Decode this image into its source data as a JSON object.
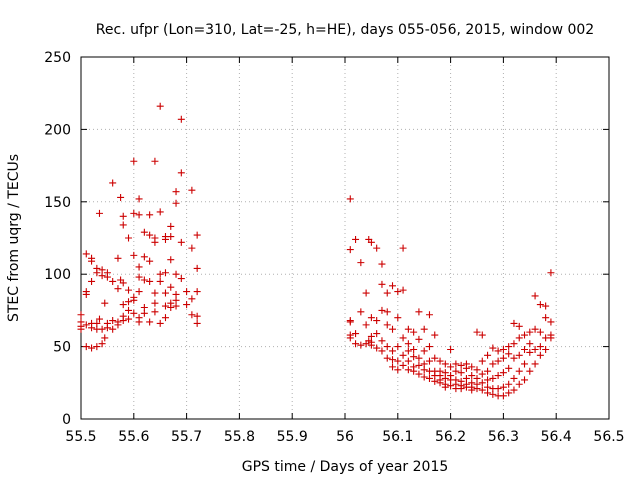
{
  "chart_data": {
    "type": "scatter",
    "title": "Rec. ufpr (Lon=310, Lat=-25, h=HE), days 055-056, 2015, window 002",
    "xlabel": "GPS time / Days of year 2015",
    "ylabel": "STEC from uqrg / TECUs",
    "xlim": [
      55.5,
      56.5
    ],
    "ylim": [
      0,
      250
    ],
    "x_ticks": [
      55.5,
      55.6,
      55.7,
      55.8,
      55.9,
      56,
      56.1,
      56.2,
      56.3,
      56.4,
      56.5
    ],
    "x_tick_labels": [
      "55.5",
      "55.6",
      "55.7",
      "55.8",
      "55.9",
      "56",
      "56.1",
      "56.2",
      "56.3",
      "56.4",
      "56.5"
    ],
    "y_ticks": [
      0,
      50,
      100,
      150,
      200,
      250
    ],
    "y_tick_labels": [
      "0",
      "50",
      "100",
      "150",
      "200",
      "250"
    ],
    "marker": "+",
    "color": "#cc0000",
    "series": [
      {
        "name": "STEC",
        "points": [
          [
            55.5,
            72
          ],
          [
            55.5,
            67
          ],
          [
            55.5,
            64
          ],
          [
            55.5,
            62
          ],
          [
            55.51,
            114
          ],
          [
            55.51,
            88
          ],
          [
            55.51,
            86
          ],
          [
            55.51,
            65
          ],
          [
            55.51,
            50
          ],
          [
            55.52,
            111
          ],
          [
            55.52,
            109
          ],
          [
            55.52,
            95
          ],
          [
            55.52,
            66
          ],
          [
            55.52,
            63
          ],
          [
            55.52,
            49
          ],
          [
            55.53,
            104
          ],
          [
            55.53,
            101
          ],
          [
            55.53,
            66
          ],
          [
            55.53,
            62
          ],
          [
            55.53,
            50
          ],
          [
            55.535,
            142
          ],
          [
            55.535,
            69
          ],
          [
            55.54,
            103
          ],
          [
            55.54,
            99
          ],
          [
            55.54,
            62
          ],
          [
            55.54,
            52
          ],
          [
            55.545,
            80
          ],
          [
            55.545,
            56
          ],
          [
            55.55,
            101
          ],
          [
            55.55,
            98
          ],
          [
            55.55,
            66
          ],
          [
            55.55,
            63
          ],
          [
            55.56,
            163
          ],
          [
            55.56,
            95
          ],
          [
            55.56,
            68
          ],
          [
            55.56,
            62
          ],
          [
            55.57,
            111
          ],
          [
            55.57,
            90
          ],
          [
            55.57,
            67
          ],
          [
            55.57,
            65
          ],
          [
            55.575,
            153
          ],
          [
            55.575,
            96
          ],
          [
            55.58,
            140
          ],
          [
            55.58,
            134
          ],
          [
            55.58,
            94
          ],
          [
            55.58,
            79
          ],
          [
            55.58,
            71
          ],
          [
            55.58,
            68
          ],
          [
            55.59,
            125
          ],
          [
            55.59,
            89
          ],
          [
            55.59,
            81
          ],
          [
            55.59,
            75
          ],
          [
            55.59,
            69
          ],
          [
            55.6,
            178
          ],
          [
            55.6,
            142
          ],
          [
            55.6,
            113
          ],
          [
            55.6,
            84
          ],
          [
            55.6,
            82
          ],
          [
            55.6,
            73
          ],
          [
            55.61,
            152
          ],
          [
            55.61,
            141
          ],
          [
            55.61,
            105
          ],
          [
            55.61,
            98
          ],
          [
            55.61,
            88
          ],
          [
            55.61,
            70
          ],
          [
            55.61,
            67
          ],
          [
            55.62,
            129
          ],
          [
            55.62,
            112
          ],
          [
            55.62,
            96
          ],
          [
            55.62,
            77
          ],
          [
            55.62,
            73
          ],
          [
            55.63,
            141
          ],
          [
            55.63,
            127
          ],
          [
            55.63,
            109
          ],
          [
            55.63,
            95
          ],
          [
            55.63,
            67
          ],
          [
            55.64,
            178
          ],
          [
            55.64,
            125
          ],
          [
            55.64,
            122
          ],
          [
            55.64,
            87
          ],
          [
            55.64,
            80
          ],
          [
            55.64,
            74
          ],
          [
            55.65,
            216
          ],
          [
            55.65,
            143
          ],
          [
            55.65,
            100
          ],
          [
            55.65,
            95
          ],
          [
            55.65,
            66
          ],
          [
            55.66,
            126
          ],
          [
            55.66,
            124
          ],
          [
            55.66,
            101
          ],
          [
            55.66,
            87
          ],
          [
            55.66,
            78
          ],
          [
            55.66,
            70
          ],
          [
            55.67,
            133
          ],
          [
            55.67,
            126
          ],
          [
            55.67,
            110
          ],
          [
            55.67,
            91
          ],
          [
            55.67,
            80
          ],
          [
            55.67,
            77
          ],
          [
            55.68,
            157
          ],
          [
            55.68,
            149
          ],
          [
            55.68,
            100
          ],
          [
            55.68,
            86
          ],
          [
            55.68,
            82
          ],
          [
            55.68,
            78
          ],
          [
            55.69,
            207
          ],
          [
            55.69,
            170
          ],
          [
            55.69,
            122
          ],
          [
            55.69,
            97
          ],
          [
            55.7,
            88
          ],
          [
            55.7,
            79
          ],
          [
            55.71,
            158
          ],
          [
            55.71,
            118
          ],
          [
            55.71,
            83
          ],
          [
            55.71,
            72
          ],
          [
            55.72,
            127
          ],
          [
            55.72,
            104
          ],
          [
            55.72,
            88
          ],
          [
            55.72,
            71
          ],
          [
            55.72,
            66
          ],
          [
            56.01,
            152
          ],
          [
            56.01,
            117
          ],
          [
            56.01,
            68
          ],
          [
            56.01,
            67
          ],
          [
            56.01,
            58
          ],
          [
            56.01,
            56
          ],
          [
            56.02,
            124
          ],
          [
            56.02,
            59
          ],
          [
            56.02,
            52
          ],
          [
            56.03,
            108
          ],
          [
            56.03,
            74
          ],
          [
            56.03,
            51
          ],
          [
            56.04,
            87
          ],
          [
            56.04,
            65
          ],
          [
            56.04,
            52
          ],
          [
            56.045,
            124
          ],
          [
            56.045,
            54
          ],
          [
            56.05,
            122
          ],
          [
            56.05,
            70
          ],
          [
            56.05,
            57
          ],
          [
            56.05,
            53
          ],
          [
            56.05,
            51
          ],
          [
            56.06,
            118
          ],
          [
            56.06,
            68
          ],
          [
            56.06,
            59
          ],
          [
            56.06,
            49
          ],
          [
            56.07,
            107
          ],
          [
            56.07,
            93
          ],
          [
            56.07,
            75
          ],
          [
            56.07,
            54
          ],
          [
            56.07,
            47
          ],
          [
            56.08,
            87
          ],
          [
            56.08,
            74
          ],
          [
            56.08,
            65
          ],
          [
            56.08,
            50
          ],
          [
            56.08,
            42
          ],
          [
            56.09,
            92
          ],
          [
            56.09,
            62
          ],
          [
            56.09,
            47
          ],
          [
            56.09,
            41
          ],
          [
            56.09,
            36
          ],
          [
            56.1,
            88
          ],
          [
            56.1,
            70
          ],
          [
            56.1,
            50
          ],
          [
            56.1,
            40
          ],
          [
            56.1,
            34
          ],
          [
            56.11,
            118
          ],
          [
            56.11,
            89
          ],
          [
            56.11,
            56
          ],
          [
            56.11,
            44
          ],
          [
            56.11,
            37
          ],
          [
            56.12,
            62
          ],
          [
            56.12,
            52
          ],
          [
            56.12,
            47
          ],
          [
            56.12,
            40
          ],
          [
            56.12,
            34
          ],
          [
            56.13,
            60
          ],
          [
            56.13,
            48
          ],
          [
            56.13,
            43
          ],
          [
            56.13,
            36
          ],
          [
            56.13,
            33
          ],
          [
            56.14,
            74
          ],
          [
            56.14,
            55
          ],
          [
            56.14,
            42
          ],
          [
            56.14,
            37
          ],
          [
            56.14,
            31
          ],
          [
            56.15,
            62
          ],
          [
            56.15,
            47
          ],
          [
            56.15,
            38
          ],
          [
            56.15,
            34
          ],
          [
            56.15,
            29
          ],
          [
            56.16,
            72
          ],
          [
            56.16,
            50
          ],
          [
            56.16,
            40
          ],
          [
            56.16,
            33
          ],
          [
            56.16,
            28
          ],
          [
            56.17,
            58
          ],
          [
            56.17,
            42
          ],
          [
            56.17,
            33
          ],
          [
            56.17,
            30
          ],
          [
            56.17,
            26
          ],
          [
            56.18,
            40
          ],
          [
            56.18,
            33
          ],
          [
            56.18,
            30
          ],
          [
            56.18,
            27
          ],
          [
            56.18,
            25
          ],
          [
            56.19,
            38
          ],
          [
            56.19,
            32
          ],
          [
            56.19,
            28
          ],
          [
            56.19,
            24
          ],
          [
            56.19,
            22
          ],
          [
            56.2,
            48
          ],
          [
            56.2,
            36
          ],
          [
            56.2,
            30
          ],
          [
            56.2,
            27
          ],
          [
            56.2,
            23
          ],
          [
            56.21,
            38
          ],
          [
            56.21,
            33
          ],
          [
            56.21,
            27
          ],
          [
            56.21,
            24
          ],
          [
            56.21,
            21
          ],
          [
            56.22,
            37
          ],
          [
            56.22,
            32
          ],
          [
            56.22,
            26
          ],
          [
            56.22,
            23
          ],
          [
            56.22,
            21
          ],
          [
            56.23,
            38
          ],
          [
            56.23,
            35
          ],
          [
            56.23,
            28
          ],
          [
            56.23,
            24
          ],
          [
            56.23,
            22
          ],
          [
            56.24,
            36
          ],
          [
            56.24,
            30
          ],
          [
            56.24,
            25
          ],
          [
            56.24,
            22
          ],
          [
            56.24,
            20
          ],
          [
            56.25,
            60
          ],
          [
            56.25,
            34
          ],
          [
            56.25,
            28
          ],
          [
            56.25,
            24
          ],
          [
            56.25,
            21
          ],
          [
            56.26,
            58
          ],
          [
            56.26,
            40
          ],
          [
            56.26,
            31
          ],
          [
            56.26,
            25
          ],
          [
            56.26,
            20
          ],
          [
            56.27,
            44
          ],
          [
            56.27,
            33
          ],
          [
            56.27,
            27
          ],
          [
            56.27,
            22
          ],
          [
            56.27,
            18
          ],
          [
            56.28,
            49
          ],
          [
            56.28,
            38
          ],
          [
            56.28,
            28
          ],
          [
            56.28,
            21
          ],
          [
            56.28,
            17
          ],
          [
            56.29,
            47
          ],
          [
            56.29,
            40
          ],
          [
            56.29,
            30
          ],
          [
            56.29,
            21
          ],
          [
            56.29,
            16
          ],
          [
            56.3,
            48
          ],
          [
            56.3,
            42
          ],
          [
            56.3,
            32
          ],
          [
            56.3,
            22
          ],
          [
            56.3,
            16
          ],
          [
            56.31,
            50
          ],
          [
            56.31,
            45
          ],
          [
            56.31,
            35
          ],
          [
            56.31,
            24
          ],
          [
            56.31,
            18
          ],
          [
            56.32,
            66
          ],
          [
            56.32,
            52
          ],
          [
            56.32,
            42
          ],
          [
            56.32,
            28
          ],
          [
            56.32,
            20
          ],
          [
            56.33,
            64
          ],
          [
            56.33,
            56
          ],
          [
            56.33,
            44
          ],
          [
            56.33,
            33
          ],
          [
            56.33,
            24
          ],
          [
            56.34,
            58
          ],
          [
            56.34,
            48
          ],
          [
            56.34,
            38
          ],
          [
            56.34,
            27
          ],
          [
            56.35,
            60
          ],
          [
            56.35,
            52
          ],
          [
            56.35,
            46
          ],
          [
            56.35,
            33
          ],
          [
            56.36,
            85
          ],
          [
            56.36,
            62
          ],
          [
            56.36,
            48
          ],
          [
            56.36,
            38
          ],
          [
            56.37,
            79
          ],
          [
            56.37,
            60
          ],
          [
            56.37,
            50
          ],
          [
            56.37,
            44
          ],
          [
            56.38,
            78
          ],
          [
            56.38,
            70
          ],
          [
            56.38,
            56
          ],
          [
            56.38,
            48
          ],
          [
            56.39,
            101
          ],
          [
            56.39,
            67
          ],
          [
            56.39,
            58
          ],
          [
            56.39,
            56
          ]
        ]
      }
    ]
  }
}
